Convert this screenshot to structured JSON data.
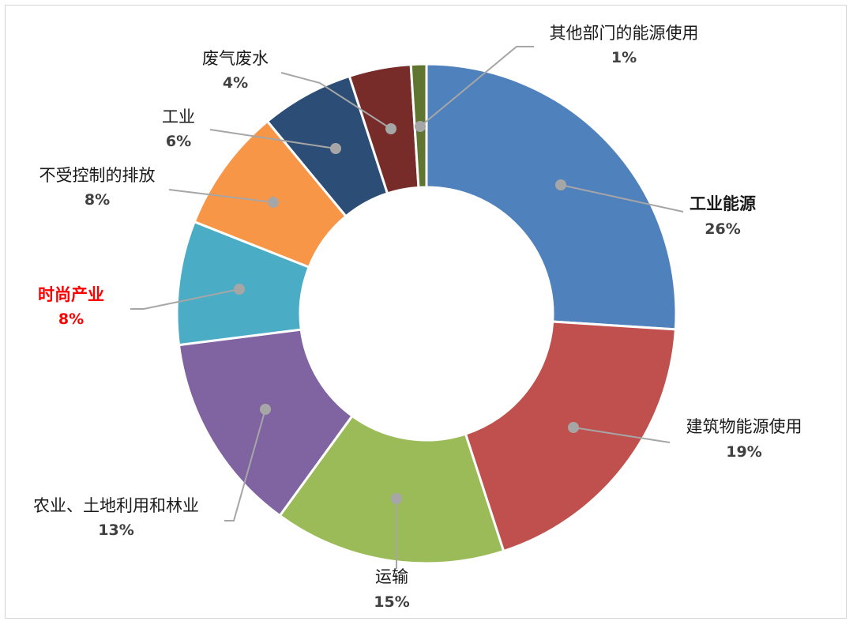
{
  "chart_data": {
    "type": "pie",
    "style": "donut",
    "title": "",
    "legend": "none",
    "slices": [
      {
        "name": "工业能源",
        "value": 26,
        "label": "26%",
        "color": "#4f81bd"
      },
      {
        "name": "建筑物能源使用",
        "value": 19,
        "label": "19%",
        "color": "#c0504d"
      },
      {
        "name": "运输",
        "value": 15,
        "label": "15%",
        "color": "#9bbb59"
      },
      {
        "name": "农业、土地利用和林业",
        "value": 13,
        "label": "13%",
        "color": "#8064a2"
      },
      {
        "name": "时尚产业",
        "value": 8,
        "label": "8%",
        "color": "#4bacc6",
        "highlight": true,
        "highlight_color": "#ff0000"
      },
      {
        "name": "不受控制的排放",
        "value": 8,
        "label": "8%",
        "color": "#f79646"
      },
      {
        "name": "工业",
        "value": 6,
        "label": "6%",
        "color": "#2c4d75"
      },
      {
        "name": "废气废水",
        "value": 4,
        "label": "4%",
        "color": "#772c2a"
      },
      {
        "name": "其他部门的能源使用",
        "value": 1,
        "label": "1%",
        "color": "#5f7530"
      }
    ]
  }
}
